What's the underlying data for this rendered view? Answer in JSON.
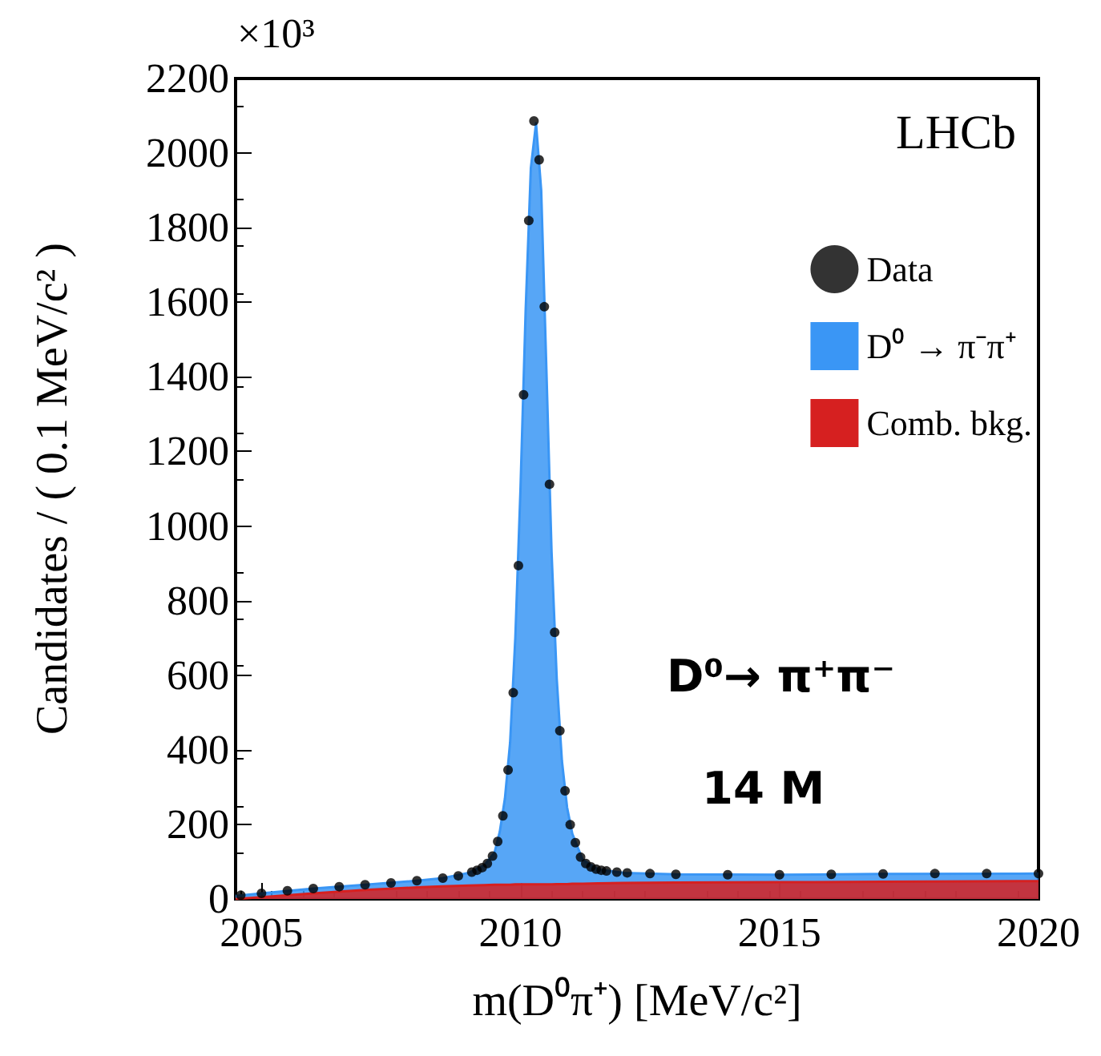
{
  "chart_data": {
    "type": "area",
    "xlabel": "m(D⁰π⁺) [MeV/c²]",
    "ylabel": "Candidates / ( 0.1 MeV/c² )",
    "xlim": [
      2004.5,
      2020
    ],
    "xticks": [
      2005,
      2010,
      2015,
      2020
    ],
    "ylim": [
      0,
      2200
    ],
    "yticks": [
      0,
      200,
      400,
      600,
      800,
      1000,
      1200,
      1400,
      1600,
      1800,
      2000,
      2200
    ],
    "stacked": true,
    "legend": "top right",
    "annotations": [
      "×10³",
      "LHCb",
      "D⁰→ π⁺π⁻",
      "14 M"
    ],
    "series": [
      {
        "name": "Comb. bkg.",
        "color": "#d62020",
        "x": [
          2004.5,
          2005,
          2006,
          2007,
          2008,
          2008.5,
          2009,
          2009.3,
          2009.5,
          2009.6,
          2009.7,
          2009.8,
          2009.9,
          2010,
          2010.1,
          2010.2,
          2010.3,
          2010.4,
          2010.5,
          2010.6,
          2010.7,
          2010.8,
          2010.9,
          2011,
          2011.2,
          2011.5,
          2012,
          2013,
          2015,
          2017,
          2020
        ],
        "values": [
          0,
          5,
          15,
          24,
          31,
          34,
          36,
          37,
          38,
          38,
          38,
          38,
          39,
          39,
          39,
          39,
          39,
          39,
          39,
          39,
          40,
          40,
          40,
          41,
          41,
          42,
          43,
          44,
          45,
          46,
          48
        ]
      },
      {
        "name": "D⁰ → π⁻π⁺",
        "color": "#3a96f5",
        "x": [
          2004.5,
          2005,
          2006,
          2007,
          2008,
          2008.5,
          2009,
          2009.3,
          2009.5,
          2009.6,
          2009.7,
          2009.8,
          2009.9,
          2010,
          2010.1,
          2010.2,
          2010.3,
          2010.4,
          2010.5,
          2010.6,
          2010.7,
          2010.8,
          2010.9,
          2011,
          2011.2,
          2011.5,
          2012,
          2013,
          2015,
          2017,
          2020
        ],
        "values": [
          8,
          10,
          13,
          14,
          18,
          22,
          34,
          53,
          87,
          142,
          232,
          382,
          661,
          1061,
          1541,
          1921,
          2041,
          1861,
          1381,
          891,
          550,
          330,
          205,
          134,
          64,
          37,
          27,
          22,
          20,
          21,
          20
        ]
      },
      {
        "name": "Data",
        "type": "scatter",
        "marker": "circle",
        "color": "#000000",
        "x": [
          2004.6,
          2005,
          2005.5,
          2006,
          2006.5,
          2007,
          2007.5,
          2008,
          2008.5,
          2008.8,
          2009.06,
          2009.16,
          2009.26,
          2009.36,
          2009.46,
          2009.56,
          2009.66,
          2009.76,
          2009.86,
          2009.96,
          2010.06,
          2010.16,
          2010.26,
          2010.36,
          2010.46,
          2010.56,
          2010.66,
          2010.76,
          2010.86,
          2010.96,
          2011.06,
          2011.16,
          2011.26,
          2011.36,
          2011.46,
          2011.56,
          2011.66,
          2011.86,
          2012.06,
          2012.5,
          2013,
          2014,
          2015,
          2016,
          2017,
          2018,
          2019,
          2020
        ],
        "values": [
          10,
          15,
          22,
          28,
          33,
          38,
          43,
          49,
          56,
          62,
          72,
          77,
          84,
          95,
          115,
          154,
          223,
          346,
          553,
          894,
          1352,
          1819,
          2086,
          1982,
          1588,
          1112,
          715,
          451,
          290,
          199,
          151,
          112,
          95,
          86,
          80,
          77,
          75,
          72,
          70,
          68,
          66,
          65,
          65,
          66,
          67,
          68,
          68,
          68
        ]
      }
    ]
  }
}
